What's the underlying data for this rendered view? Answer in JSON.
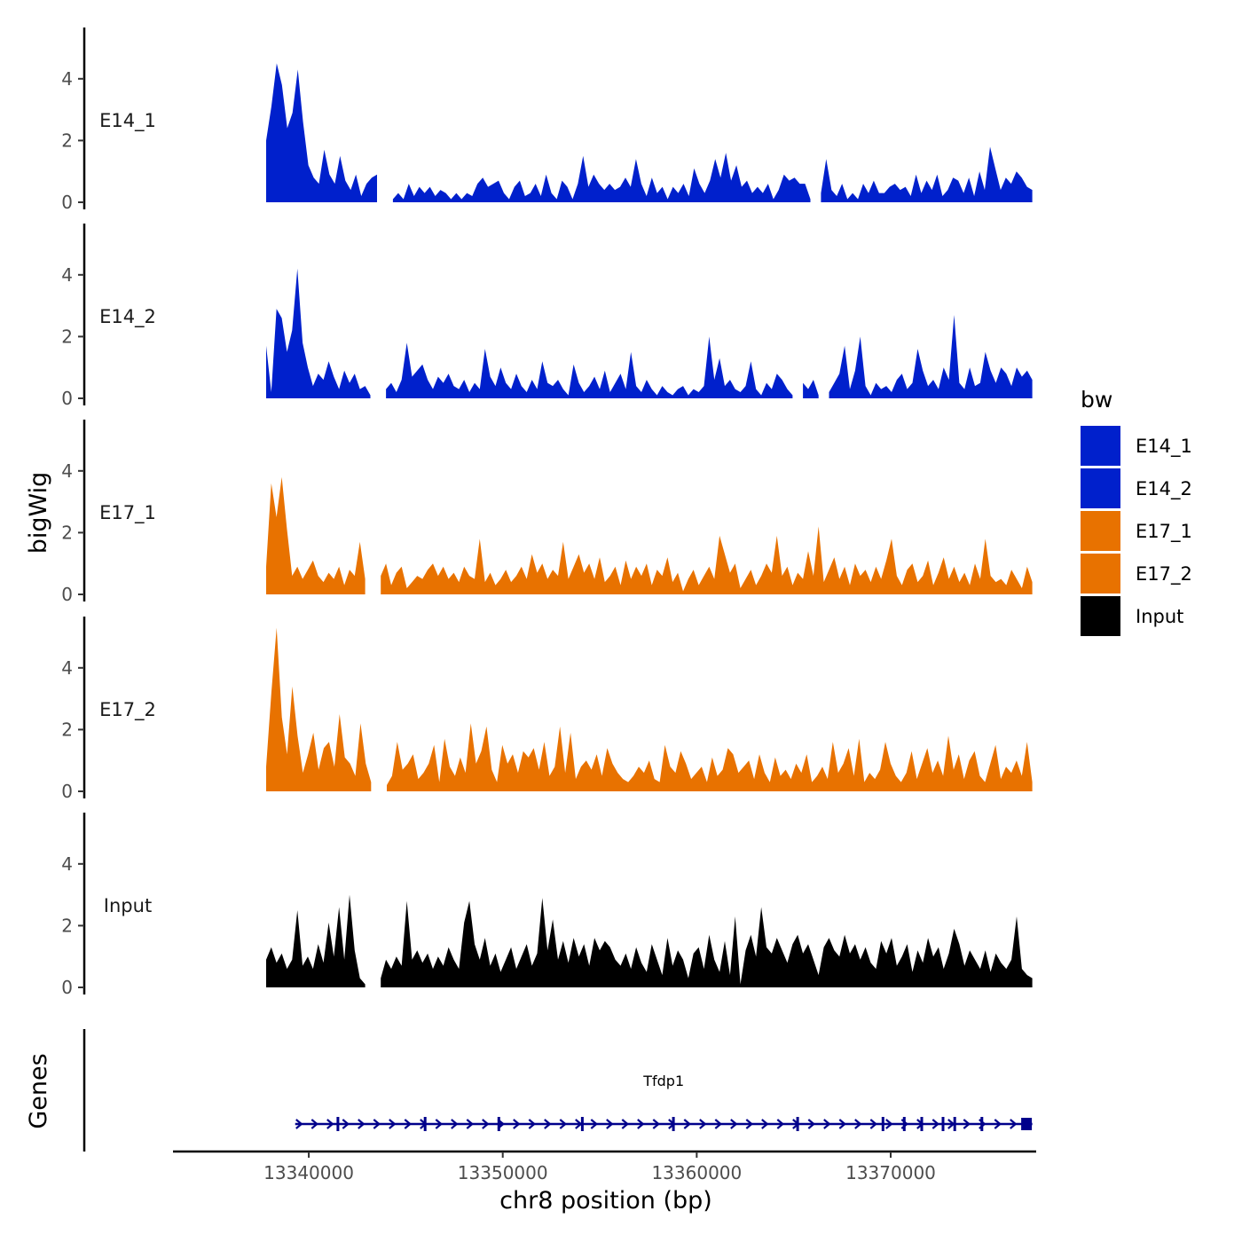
{
  "chart_data": {
    "type": "area",
    "ylabel": "bigWig",
    "xlabel": "chr8 position (bp)",
    "xlim": [
      13333000,
      13377500
    ],
    "data_range": [
      13337800,
      13377300
    ],
    "ylim": [
      0,
      5.6
    ],
    "y_ticks": [
      0,
      2,
      4
    ],
    "y_tick_labels": [
      "0",
      "2",
      "4"
    ],
    "x_ticks": [
      13340000,
      13350000,
      13360000,
      13370000
    ],
    "x_tick_labels": [
      "13340000",
      "13350000",
      "13360000",
      "13370000"
    ],
    "legend": {
      "title": "bw",
      "position": "right",
      "entries": [
        {
          "name": "E14_1",
          "color": "#0020CC"
        },
        {
          "name": "E14_2",
          "color": "#0020CC"
        },
        {
          "name": "E17_1",
          "color": "#E87200"
        },
        {
          "name": "E17_2",
          "color": "#E87200"
        },
        {
          "name": "Input",
          "color": "#000000"
        }
      ]
    },
    "series": [
      {
        "name": "E14_1",
        "color": "#0020CC",
        "values": [
          2.0,
          3.1,
          4.5,
          3.8,
          2.4,
          2.9,
          4.3,
          2.6,
          1.2,
          0.8,
          0.6,
          1.7,
          0.9,
          0.6,
          1.5,
          0.7,
          0.4,
          0.9,
          0.2,
          0.6,
          0.8,
          0.9,
          null,
          null,
          0.1,
          0.3,
          0.1,
          0.6,
          0.2,
          0.5,
          0.3,
          0.5,
          0.2,
          0.4,
          0.3,
          0.1,
          0.3,
          0.1,
          0.3,
          0.2,
          0.6,
          0.8,
          0.5,
          0.6,
          0.7,
          0.3,
          0.1,
          0.5,
          0.7,
          0.2,
          0.3,
          0.6,
          0.2,
          0.9,
          0.3,
          0.1,
          0.7,
          0.5,
          0.1,
          0.6,
          1.5,
          0.5,
          0.9,
          0.6,
          0.4,
          0.6,
          0.4,
          0.5,
          0.8,
          0.5,
          1.4,
          0.6,
          0.2,
          0.8,
          0.3,
          0.5,
          0.1,
          0.5,
          0.3,
          0.6,
          0.2,
          1.1,
          0.6,
          0.3,
          0.7,
          1.4,
          0.8,
          1.6,
          0.7,
          1.2,
          0.5,
          0.7,
          0.3,
          0.5,
          0.3,
          0.6,
          0.1,
          0.4,
          0.9,
          0.7,
          0.8,
          0.6,
          0.6,
          0.1,
          null,
          0.3,
          1.4,
          0.4,
          0.2,
          0.6,
          0.1,
          0.3,
          0.1,
          0.6,
          0.3,
          0.7,
          0.3,
          0.3,
          0.5,
          0.6,
          0.4,
          0.5,
          0.2,
          0.9,
          0.3,
          0.7,
          0.4,
          0.9,
          0.2,
          0.4,
          0.8,
          0.7,
          0.3,
          0.8,
          0.2,
          1.0,
          0.4,
          1.8,
          1.1,
          0.4,
          0.8,
          0.6,
          1.0,
          0.8,
          0.5,
          0.4
        ]
      },
      {
        "name": "E14_2",
        "color": "#0020CC",
        "values": [
          1.7,
          0.2,
          2.9,
          2.6,
          1.5,
          2.2,
          4.2,
          1.8,
          1.0,
          0.4,
          0.8,
          0.6,
          1.2,
          0.7,
          0.3,
          0.9,
          0.5,
          0.8,
          0.3,
          0.4,
          0.1,
          null,
          null,
          0.3,
          0.5,
          0.2,
          0.6,
          1.8,
          0.7,
          0.9,
          1.1,
          0.6,
          0.3,
          0.7,
          0.5,
          0.8,
          0.4,
          0.3,
          0.6,
          0.2,
          0.5,
          0.3,
          1.6,
          0.7,
          0.4,
          1.0,
          0.5,
          0.3,
          0.8,
          0.4,
          0.2,
          0.6,
          0.3,
          1.2,
          0.5,
          0.4,
          0.6,
          0.3,
          0.1,
          1.1,
          0.5,
          0.2,
          0.4,
          0.7,
          0.3,
          0.9,
          0.2,
          0.5,
          0.8,
          0.3,
          1.5,
          0.4,
          0.2,
          0.6,
          0.3,
          0.1,
          0.4,
          0.2,
          0.1,
          0.3,
          0.4,
          0.1,
          0.3,
          0.2,
          0.4,
          2.0,
          0.6,
          1.3,
          0.4,
          0.6,
          0.3,
          0.2,
          0.4,
          1.2,
          0.3,
          0.1,
          0.5,
          0.3,
          0.8,
          0.6,
          0.3,
          0.1,
          null,
          0.5,
          0.3,
          0.6,
          0.1,
          null,
          0.2,
          0.5,
          0.8,
          1.7,
          0.3,
          0.9,
          2.0,
          0.4,
          0.1,
          0.5,
          0.3,
          0.4,
          0.2,
          0.6,
          0.8,
          0.3,
          0.5,
          1.6,
          0.9,
          0.4,
          0.6,
          0.3,
          1.0,
          0.6,
          2.7,
          0.5,
          0.3,
          1.0,
          0.4,
          0.5,
          1.5,
          0.9,
          0.5,
          1.0,
          0.8,
          0.4,
          1.0,
          0.7,
          0.9,
          0.6
        ]
      },
      {
        "name": "E17_1",
        "color": "#E87200",
        "values": [
          0.9,
          3.6,
          2.5,
          3.8,
          2.1,
          0.6,
          0.9,
          0.5,
          0.8,
          1.1,
          0.6,
          0.4,
          0.7,
          0.5,
          0.9,
          0.3,
          0.8,
          0.6,
          1.7,
          0.5,
          null,
          null,
          0.6,
          1.0,
          0.3,
          0.7,
          0.9,
          0.2,
          0.4,
          0.6,
          0.5,
          0.8,
          1.0,
          0.6,
          0.9,
          0.5,
          0.7,
          0.4,
          0.9,
          0.6,
          0.5,
          1.8,
          0.4,
          0.7,
          0.3,
          0.5,
          0.8,
          0.4,
          0.6,
          0.9,
          0.5,
          1.3,
          0.7,
          1.0,
          0.5,
          0.8,
          0.6,
          1.7,
          0.5,
          0.9,
          1.3,
          0.7,
          1.0,
          0.5,
          1.2,
          0.4,
          0.6,
          0.9,
          0.3,
          1.1,
          0.5,
          0.9,
          0.6,
          1.0,
          0.3,
          0.8,
          0.6,
          1.2,
          0.4,
          0.7,
          0.1,
          0.5,
          0.8,
          0.3,
          0.6,
          0.9,
          0.5,
          1.9,
          1.3,
          0.7,
          1.0,
          0.2,
          0.5,
          0.8,
          0.3,
          0.6,
          1.0,
          0.7,
          1.9,
          0.6,
          0.9,
          0.3,
          0.7,
          0.5,
          1.4,
          0.6,
          2.2,
          0.4,
          0.8,
          1.2,
          0.5,
          0.9,
          0.3,
          1.0,
          0.6,
          0.8,
          0.4,
          0.9,
          0.5,
          1.1,
          1.8,
          0.6,
          0.3,
          0.8,
          1.0,
          0.4,
          0.6,
          1.1,
          0.3,
          0.7,
          1.2,
          0.5,
          0.9,
          0.4,
          0.7,
          0.3,
          1.0,
          0.5,
          1.8,
          0.6,
          0.4,
          0.5,
          0.3,
          0.8,
          0.5,
          0.2,
          0.9,
          0.4
        ]
      },
      {
        "name": "E17_2",
        "color": "#E87200",
        "values": [
          0.8,
          3.2,
          5.3,
          2.4,
          1.2,
          3.4,
          1.8,
          0.6,
          1.2,
          1.9,
          0.7,
          1.4,
          1.6,
          0.8,
          2.5,
          1.1,
          0.9,
          0.5,
          2.2,
          0.9,
          0.3,
          null,
          null,
          0.2,
          0.5,
          1.6,
          0.7,
          0.9,
          1.2,
          0.4,
          0.6,
          0.9,
          1.5,
          0.3,
          1.7,
          0.8,
          0.5,
          1.1,
          0.6,
          2.2,
          0.9,
          1.3,
          2.1,
          0.7,
          0.3,
          1.5,
          0.9,
          1.2,
          0.6,
          1.3,
          1.1,
          1.4,
          0.7,
          1.6,
          0.5,
          0.8,
          2.1,
          0.6,
          1.9,
          0.4,
          0.8,
          1.0,
          0.7,
          1.2,
          0.5,
          1.4,
          0.9,
          0.6,
          0.4,
          0.3,
          0.5,
          0.8,
          0.6,
          1.0,
          0.4,
          0.3,
          1.5,
          0.8,
          0.6,
          1.3,
          0.9,
          0.4,
          0.6,
          0.8,
          0.3,
          1.1,
          0.5,
          0.7,
          1.4,
          1.2,
          0.6,
          0.8,
          1.0,
          0.4,
          1.2,
          0.6,
          0.3,
          1.1,
          0.5,
          0.7,
          0.4,
          0.9,
          0.6,
          1.2,
          0.3,
          0.5,
          0.8,
          0.4,
          1.6,
          0.6,
          0.9,
          1.4,
          0.5,
          1.7,
          0.3,
          0.6,
          0.4,
          0.7,
          1.6,
          0.9,
          0.5,
          0.3,
          0.6,
          1.3,
          0.4,
          0.9,
          1.4,
          0.6,
          1.0,
          0.5,
          1.8,
          0.7,
          1.2,
          0.4,
          1.0,
          1.3,
          0.5,
          0.3,
          0.9,
          1.5,
          0.4,
          0.8,
          0.6,
          1.0,
          0.5,
          1.6,
          0.3
        ]
      },
      {
        "name": "Input",
        "color": "#000000",
        "values": [
          0.9,
          1.3,
          0.8,
          1.1,
          0.6,
          0.9,
          2.5,
          0.7,
          1.0,
          0.6,
          1.4,
          0.8,
          2.1,
          1.0,
          2.6,
          0.9,
          3.0,
          1.2,
          0.3,
          0.1,
          null,
          null,
          0.3,
          0.9,
          0.6,
          1.0,
          0.7,
          2.8,
          0.9,
          1.2,
          0.8,
          1.1,
          0.6,
          1.0,
          0.7,
          1.3,
          0.9,
          0.6,
          2.1,
          2.8,
          1.4,
          0.9,
          1.6,
          0.7,
          1.1,
          0.5,
          0.9,
          1.3,
          0.6,
          1.0,
          1.4,
          0.7,
          1.1,
          2.9,
          1.2,
          2.2,
          0.9,
          1.5,
          0.8,
          1.6,
          1.0,
          1.4,
          0.7,
          1.6,
          1.2,
          1.5,
          1.3,
          0.9,
          0.7,
          1.1,
          0.6,
          1.3,
          0.8,
          0.5,
          1.4,
          0.9,
          0.4,
          1.6,
          0.7,
          1.2,
          0.9,
          0.3,
          1.1,
          1.3,
          0.6,
          1.7,
          0.9,
          0.5,
          1.5,
          0.4,
          2.3,
          0.1,
          1.2,
          1.7,
          1.0,
          2.6,
          1.3,
          1.1,
          1.6,
          1.2,
          0.8,
          1.4,
          1.7,
          1.1,
          1.4,
          0.9,
          0.4,
          1.3,
          1.6,
          1.2,
          1.0,
          1.7,
          1.1,
          1.4,
          0.9,
          1.3,
          0.8,
          0.6,
          1.5,
          1.1,
          1.6,
          0.7,
          1.0,
          1.4,
          0.5,
          1.2,
          0.8,
          1.6,
          1.0,
          1.3,
          0.6,
          1.1,
          1.9,
          1.4,
          0.7,
          1.2,
          0.9,
          0.6,
          1.2,
          0.5,
          1.1,
          0.8,
          0.6,
          0.9,
          2.3,
          0.6,
          0.4,
          0.3
        ]
      }
    ],
    "genes": {
      "track_label": "Genes",
      "name": "Tfdp1",
      "color": "#00008B",
      "start": 13339300,
      "end": 13377300,
      "strand": "+",
      "exon_positions": [
        13341500,
        13346000,
        13349800,
        13354100,
        13358800,
        13365200,
        13369600,
        13370700,
        13371600,
        13372700,
        13373300,
        13374700,
        13377000
      ]
    }
  }
}
